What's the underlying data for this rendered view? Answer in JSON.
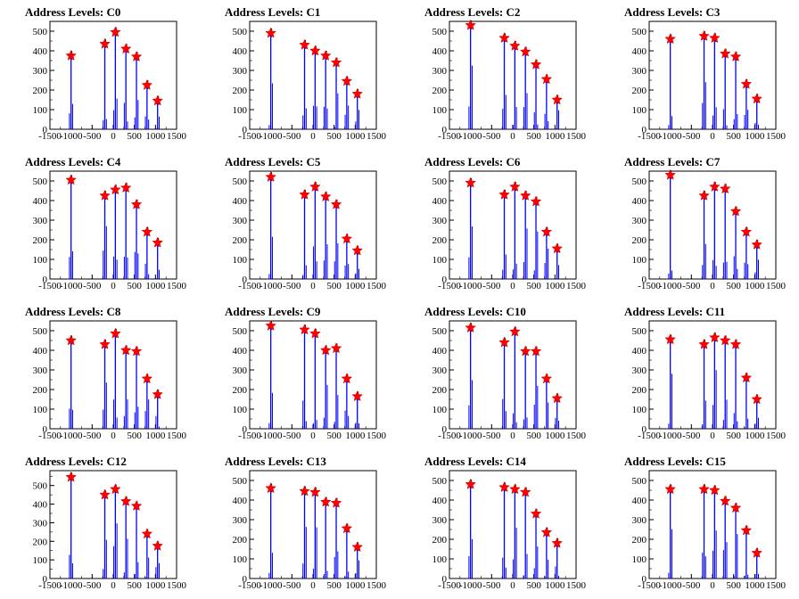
{
  "colors": {
    "histogram": "#0000ff",
    "peak_marker": "#ff0000",
    "axis": "#000000",
    "background": "#ffffff"
  },
  "shared_axes": {
    "xlim": [
      -1500,
      1500
    ],
    "ylim": [
      0,
      550
    ],
    "xticks": [
      -1500,
      -1000,
      -500,
      0,
      500,
      1000,
      1500
    ],
    "xtick_labels": [
      "-1500",
      "-1000",
      "-500",
      "0",
      "500",
      "1000",
      "1500"
    ]
  },
  "chart_data": [
    {
      "type": "bar",
      "title": "Address Levels: C0",
      "ylim": [
        0,
        550
      ],
      "yticks": [
        0,
        100,
        200,
        300,
        400,
        500
      ],
      "peaks": [
        {
          "x": -1000,
          "y": 375
        },
        {
          "x": -200,
          "y": 435
        },
        {
          "x": 50,
          "y": 495
        },
        {
          "x": 300,
          "y": 410
        },
        {
          "x": 550,
          "y": 370
        },
        {
          "x": 800,
          "y": 225
        },
        {
          "x": 1050,
          "y": 145
        }
      ]
    },
    {
      "type": "bar",
      "title": "Address Levels: C1",
      "ylim": [
        0,
        550
      ],
      "yticks": [
        0,
        100,
        200,
        300,
        400,
        500
      ],
      "peaks": [
        {
          "x": -1000,
          "y": 490
        },
        {
          "x": -200,
          "y": 430
        },
        {
          "x": 50,
          "y": 400
        },
        {
          "x": 300,
          "y": 375
        },
        {
          "x": 550,
          "y": 340
        },
        {
          "x": 800,
          "y": 245
        },
        {
          "x": 1050,
          "y": 180
        }
      ]
    },
    {
      "type": "bar",
      "title": "Address Levels: C2",
      "ylim": [
        0,
        550
      ],
      "yticks": [
        0,
        100,
        200,
        300,
        400,
        500
      ],
      "peaks": [
        {
          "x": -1000,
          "y": 530
        },
        {
          "x": -200,
          "y": 465
        },
        {
          "x": 50,
          "y": 425
        },
        {
          "x": 300,
          "y": 395
        },
        {
          "x": 550,
          "y": 330
        },
        {
          "x": 800,
          "y": 255
        },
        {
          "x": 1050,
          "y": 150
        }
      ]
    },
    {
      "type": "bar",
      "title": "Address Levels: C3",
      "ylim": [
        0,
        550
      ],
      "yticks": [
        0,
        100,
        200,
        300,
        400,
        500
      ],
      "peaks": [
        {
          "x": -1000,
          "y": 460
        },
        {
          "x": -200,
          "y": 475
        },
        {
          "x": 50,
          "y": 465
        },
        {
          "x": 300,
          "y": 385
        },
        {
          "x": 550,
          "y": 370
        },
        {
          "x": 800,
          "y": 230
        },
        {
          "x": 1050,
          "y": 155
        }
      ]
    },
    {
      "type": "bar",
      "title": "Address Levels: C4",
      "ylim": [
        0,
        550
      ],
      "yticks": [
        0,
        100,
        200,
        300,
        400,
        500
      ],
      "peaks": [
        {
          "x": -1000,
          "y": 505
        },
        {
          "x": -200,
          "y": 425
        },
        {
          "x": 50,
          "y": 455
        },
        {
          "x": 300,
          "y": 465
        },
        {
          "x": 550,
          "y": 380
        },
        {
          "x": 800,
          "y": 240
        },
        {
          "x": 1050,
          "y": 185
        }
      ]
    },
    {
      "type": "bar",
      "title": "Address Levels: C5",
      "ylim": [
        0,
        550
      ],
      "yticks": [
        0,
        100,
        200,
        300,
        400,
        500
      ],
      "peaks": [
        {
          "x": -1000,
          "y": 520
        },
        {
          "x": -200,
          "y": 430
        },
        {
          "x": 50,
          "y": 470
        },
        {
          "x": 300,
          "y": 420
        },
        {
          "x": 550,
          "y": 380
        },
        {
          "x": 800,
          "y": 205
        },
        {
          "x": 1050,
          "y": 145
        }
      ]
    },
    {
      "type": "bar",
      "title": "Address Levels: C6",
      "ylim": [
        0,
        550
      ],
      "yticks": [
        0,
        100,
        200,
        300,
        400,
        500
      ],
      "peaks": [
        {
          "x": -1000,
          "y": 490
        },
        {
          "x": -200,
          "y": 430
        },
        {
          "x": 50,
          "y": 470
        },
        {
          "x": 300,
          "y": 425
        },
        {
          "x": 550,
          "y": 395
        },
        {
          "x": 800,
          "y": 240
        },
        {
          "x": 1050,
          "y": 155
        }
      ]
    },
    {
      "type": "bar",
      "title": "Address Levels: C7",
      "ylim": [
        0,
        550
      ],
      "yticks": [
        0,
        100,
        200,
        300,
        400,
        500
      ],
      "peaks": [
        {
          "x": -1000,
          "y": 530
        },
        {
          "x": -200,
          "y": 425
        },
        {
          "x": 50,
          "y": 470
        },
        {
          "x": 300,
          "y": 460
        },
        {
          "x": 550,
          "y": 345
        },
        {
          "x": 800,
          "y": 240
        },
        {
          "x": 1050,
          "y": 175
        }
      ]
    },
    {
      "type": "bar",
      "title": "Address Levels: C8",
      "ylim": [
        0,
        550
      ],
      "yticks": [
        0,
        100,
        200,
        300,
        400,
        500
      ],
      "peaks": [
        {
          "x": -1000,
          "y": 450
        },
        {
          "x": -200,
          "y": 430
        },
        {
          "x": 50,
          "y": 485
        },
        {
          "x": 300,
          "y": 400
        },
        {
          "x": 550,
          "y": 395
        },
        {
          "x": 800,
          "y": 255
        },
        {
          "x": 1050,
          "y": 175
        }
      ]
    },
    {
      "type": "bar",
      "title": "Address Levels: C9",
      "ylim": [
        0,
        550
      ],
      "yticks": [
        0,
        100,
        200,
        300,
        400,
        500
      ],
      "peaks": [
        {
          "x": -1000,
          "y": 525
        },
        {
          "x": -200,
          "y": 505
        },
        {
          "x": 50,
          "y": 485
        },
        {
          "x": 300,
          "y": 400
        },
        {
          "x": 550,
          "y": 410
        },
        {
          "x": 800,
          "y": 255
        },
        {
          "x": 1050,
          "y": 165
        }
      ]
    },
    {
      "type": "bar",
      "title": "Address Levels: C10",
      "ylim": [
        0,
        550
      ],
      "yticks": [
        0,
        100,
        200,
        300,
        400,
        500
      ],
      "peaks": [
        {
          "x": -1000,
          "y": 515
        },
        {
          "x": -200,
          "y": 440
        },
        {
          "x": 50,
          "y": 495
        },
        {
          "x": 300,
          "y": 395
        },
        {
          "x": 550,
          "y": 395
        },
        {
          "x": 800,
          "y": 255
        },
        {
          "x": 1050,
          "y": 155
        }
      ]
    },
    {
      "type": "bar",
      "title": "Address Levels: C11",
      "ylim": [
        0,
        550
      ],
      "yticks": [
        0,
        100,
        200,
        300,
        400,
        500
      ],
      "peaks": [
        {
          "x": -1000,
          "y": 455
        },
        {
          "x": -200,
          "y": 430
        },
        {
          "x": 50,
          "y": 465
        },
        {
          "x": 300,
          "y": 450
        },
        {
          "x": 550,
          "y": 430
        },
        {
          "x": 800,
          "y": 260
        },
        {
          "x": 1050,
          "y": 150
        }
      ]
    },
    {
      "type": "bar",
      "title": "Address Levels: C12",
      "ylim": [
        0,
        580
      ],
      "yticks": [
        0,
        100,
        200,
        300,
        400,
        500
      ],
      "peaks": [
        {
          "x": -1000,
          "y": 545
        },
        {
          "x": -200,
          "y": 450
        },
        {
          "x": 50,
          "y": 480
        },
        {
          "x": 300,
          "y": 415
        },
        {
          "x": 550,
          "y": 390
        },
        {
          "x": 800,
          "y": 240
        },
        {
          "x": 1050,
          "y": 175
        }
      ]
    },
    {
      "type": "bar",
      "title": "Address Levels: C13",
      "ylim": [
        0,
        550
      ],
      "yticks": [
        0,
        100,
        200,
        300,
        400,
        500
      ],
      "peaks": [
        {
          "x": -1000,
          "y": 460
        },
        {
          "x": -200,
          "y": 445
        },
        {
          "x": 50,
          "y": 440
        },
        {
          "x": 300,
          "y": 390
        },
        {
          "x": 550,
          "y": 385
        },
        {
          "x": 800,
          "y": 255
        },
        {
          "x": 1050,
          "y": 160
        }
      ]
    },
    {
      "type": "bar",
      "title": "Address Levels: C14",
      "ylim": [
        0,
        550
      ],
      "yticks": [
        0,
        100,
        200,
        300,
        400,
        500
      ],
      "peaks": [
        {
          "x": -1000,
          "y": 480
        },
        {
          "x": -200,
          "y": 465
        },
        {
          "x": 50,
          "y": 455
        },
        {
          "x": 300,
          "y": 440
        },
        {
          "x": 550,
          "y": 330
        },
        {
          "x": 800,
          "y": 235
        },
        {
          "x": 1050,
          "y": 180
        }
      ]
    },
    {
      "type": "bar",
      "title": "Address Levels: C15",
      "ylim": [
        0,
        550
      ],
      "yticks": [
        0,
        100,
        200,
        300,
        400,
        500
      ],
      "peaks": [
        {
          "x": -1000,
          "y": 455
        },
        {
          "x": -200,
          "y": 455
        },
        {
          "x": 50,
          "y": 450
        },
        {
          "x": 300,
          "y": 395
        },
        {
          "x": 550,
          "y": 360
        },
        {
          "x": 800,
          "y": 245
        },
        {
          "x": 1050,
          "y": 130
        }
      ]
    }
  ]
}
